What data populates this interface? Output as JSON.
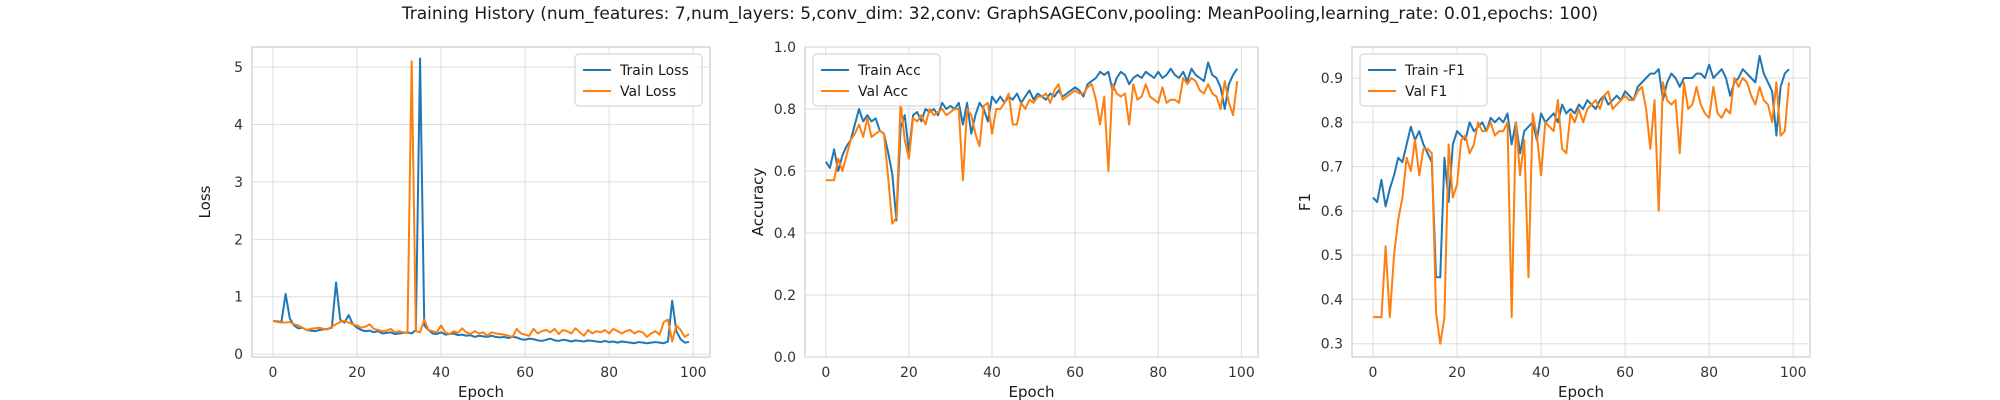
{
  "title": "Training History (num_features: 7,num_layers: 5,conv_dim: 32,conv: GraphSAGEConv,pooling: MeanPooling,learning_rate: 0.01,epochs: 100)",
  "colors": {
    "blue": "#1f77b4",
    "orange": "#ff7f0e"
  },
  "chart_data": [
    {
      "type": "line",
      "xlabel": "Epoch",
      "ylabel": "Loss",
      "xlim": [
        -5,
        104
      ],
      "ylim": [
        -0.05,
        5.35
      ],
      "xticks": [
        0,
        20,
        40,
        60,
        80,
        100
      ],
      "yticks": [
        0,
        1,
        2,
        3,
        4,
        5
      ],
      "grid": true,
      "legend": "top-right",
      "series": [
        {
          "name": "Train Loss",
          "color": "#1f77b4",
          "values": [
            0.58,
            0.57,
            0.56,
            1.05,
            0.62,
            0.5,
            0.45,
            0.46,
            0.42,
            0.41,
            0.4,
            0.42,
            0.43,
            0.44,
            0.46,
            1.25,
            0.6,
            0.55,
            0.68,
            0.52,
            0.46,
            0.42,
            0.4,
            0.41,
            0.38,
            0.4,
            0.36,
            0.37,
            0.38,
            0.35,
            0.36,
            0.37,
            0.38,
            0.36,
            0.42,
            5.15,
            0.5,
            0.42,
            0.36,
            0.35,
            0.38,
            0.34,
            0.35,
            0.36,
            0.33,
            0.34,
            0.32,
            0.33,
            0.3,
            0.32,
            0.31,
            0.3,
            0.32,
            0.3,
            0.29,
            0.3,
            0.28,
            0.3,
            0.29,
            0.26,
            0.25,
            0.27,
            0.26,
            0.24,
            0.23,
            0.25,
            0.27,
            0.24,
            0.23,
            0.25,
            0.24,
            0.22,
            0.24,
            0.23,
            0.22,
            0.24,
            0.23,
            0.22,
            0.21,
            0.23,
            0.21,
            0.22,
            0.2,
            0.22,
            0.21,
            0.2,
            0.19,
            0.21,
            0.2,
            0.19,
            0.2,
            0.21,
            0.2,
            0.19,
            0.22,
            0.93,
            0.4,
            0.26,
            0.2,
            0.21
          ]
        },
        {
          "name": "Val Loss",
          "color": "#ff7f0e",
          "values": [
            0.58,
            0.56,
            0.55,
            0.55,
            0.56,
            0.52,
            0.5,
            0.46,
            0.42,
            0.44,
            0.45,
            0.46,
            0.44,
            0.43,
            0.48,
            0.52,
            0.56,
            0.58,
            0.55,
            0.52,
            0.5,
            0.46,
            0.48,
            0.52,
            0.44,
            0.42,
            0.4,
            0.41,
            0.44,
            0.38,
            0.4,
            0.38,
            0.37,
            5.1,
            0.4,
            0.38,
            0.6,
            0.42,
            0.4,
            0.38,
            0.5,
            0.38,
            0.35,
            0.4,
            0.37,
            0.45,
            0.38,
            0.35,
            0.4,
            0.36,
            0.38,
            0.32,
            0.38,
            0.36,
            0.35,
            0.34,
            0.32,
            0.3,
            0.44,
            0.36,
            0.34,
            0.32,
            0.44,
            0.36,
            0.4,
            0.42,
            0.38,
            0.44,
            0.35,
            0.42,
            0.4,
            0.36,
            0.45,
            0.38,
            0.32,
            0.42,
            0.36,
            0.4,
            0.38,
            0.42,
            0.36,
            0.44,
            0.4,
            0.36,
            0.4,
            0.42,
            0.36,
            0.4,
            0.38,
            0.3,
            0.36,
            0.4,
            0.34,
            0.56,
            0.6,
            0.22,
            0.5,
            0.42,
            0.3,
            0.35
          ]
        }
      ]
    },
    {
      "type": "line",
      "xlabel": "Epoch",
      "ylabel": "Accuracy",
      "xlim": [
        -5,
        104
      ],
      "ylim": [
        0.0,
        1.0
      ],
      "xticks": [
        0,
        20,
        40,
        60,
        80,
        100
      ],
      "yticks": [
        0.0,
        0.2,
        0.4,
        0.6,
        0.8,
        1.0
      ],
      "grid": true,
      "legend": "top-left",
      "series": [
        {
          "name": "Train Acc",
          "color": "#1f77b4",
          "values": [
            0.63,
            0.61,
            0.67,
            0.6,
            0.65,
            0.68,
            0.7,
            0.75,
            0.8,
            0.76,
            0.78,
            0.76,
            0.77,
            0.73,
            0.72,
            0.66,
            0.59,
            0.44,
            0.74,
            0.78,
            0.66,
            0.78,
            0.79,
            0.76,
            0.8,
            0.79,
            0.8,
            0.78,
            0.82,
            0.8,
            0.81,
            0.8,
            0.82,
            0.75,
            0.82,
            0.72,
            0.78,
            0.82,
            0.8,
            0.76,
            0.84,
            0.82,
            0.84,
            0.82,
            0.84,
            0.83,
            0.85,
            0.82,
            0.84,
            0.86,
            0.83,
            0.85,
            0.84,
            0.83,
            0.85,
            0.84,
            0.86,
            0.84,
            0.85,
            0.86,
            0.87,
            0.86,
            0.84,
            0.88,
            0.89,
            0.9,
            0.92,
            0.91,
            0.92,
            0.86,
            0.9,
            0.92,
            0.91,
            0.88,
            0.9,
            0.91,
            0.9,
            0.92,
            0.91,
            0.9,
            0.92,
            0.9,
            0.91,
            0.93,
            0.91,
            0.9,
            0.92,
            0.89,
            0.93,
            0.91,
            0.9,
            0.89,
            0.95,
            0.91,
            0.9,
            0.87,
            0.8,
            0.88,
            0.91,
            0.93
          ]
        },
        {
          "name": "Val Acc",
          "color": "#ff7f0e",
          "values": [
            0.57,
            0.57,
            0.57,
            0.64,
            0.6,
            0.65,
            0.7,
            0.72,
            0.75,
            0.71,
            0.77,
            0.71,
            0.72,
            0.73,
            0.72,
            0.58,
            0.43,
            0.45,
            0.82,
            0.7,
            0.64,
            0.77,
            0.76,
            0.78,
            0.75,
            0.8,
            0.78,
            0.79,
            0.8,
            0.78,
            0.79,
            0.8,
            0.8,
            0.57,
            0.8,
            0.78,
            0.72,
            0.68,
            0.81,
            0.82,
            0.72,
            0.8,
            0.8,
            0.82,
            0.85,
            0.75,
            0.75,
            0.82,
            0.8,
            0.83,
            0.82,
            0.84,
            0.84,
            0.85,
            0.82,
            0.86,
            0.88,
            0.83,
            0.84,
            0.85,
            0.86,
            0.85,
            0.85,
            0.87,
            0.88,
            0.83,
            0.75,
            0.84,
            0.6,
            0.88,
            0.85,
            0.84,
            0.85,
            0.75,
            0.88,
            0.83,
            0.84,
            0.88,
            0.84,
            0.83,
            0.82,
            0.87,
            0.82,
            0.83,
            0.83,
            0.82,
            0.9,
            0.88,
            0.9,
            0.89,
            0.86,
            0.85,
            0.88,
            0.85,
            0.84,
            0.8,
            0.89,
            0.82,
            0.78,
            0.89
          ]
        }
      ]
    },
    {
      "type": "line",
      "xlabel": "Epoch",
      "ylabel": "F1",
      "xlim": [
        -5,
        104
      ],
      "ylim": [
        0.27,
        0.97
      ],
      "xticks": [
        0,
        20,
        40,
        60,
        80,
        100
      ],
      "yticks": [
        0.3,
        0.4,
        0.5,
        0.6,
        0.7,
        0.8,
        0.9
      ],
      "grid": true,
      "legend": "top-left",
      "series": [
        {
          "name": "Train -F1",
          "color": "#1f77b4",
          "values": [
            0.63,
            0.62,
            0.67,
            0.61,
            0.65,
            0.68,
            0.72,
            0.71,
            0.75,
            0.79,
            0.76,
            0.78,
            0.75,
            0.73,
            0.71,
            0.45,
            0.45,
            0.72,
            0.62,
            0.75,
            0.78,
            0.77,
            0.76,
            0.8,
            0.78,
            0.79,
            0.8,
            0.78,
            0.81,
            0.8,
            0.81,
            0.8,
            0.82,
            0.75,
            0.8,
            0.73,
            0.78,
            0.79,
            0.8,
            0.76,
            0.82,
            0.8,
            0.81,
            0.82,
            0.8,
            0.84,
            0.82,
            0.83,
            0.82,
            0.84,
            0.83,
            0.85,
            0.84,
            0.83,
            0.85,
            0.86,
            0.84,
            0.85,
            0.86,
            0.85,
            0.87,
            0.86,
            0.85,
            0.88,
            0.89,
            0.9,
            0.91,
            0.91,
            0.92,
            0.85,
            0.89,
            0.91,
            0.9,
            0.88,
            0.9,
            0.9,
            0.9,
            0.91,
            0.91,
            0.9,
            0.93,
            0.9,
            0.91,
            0.92,
            0.9,
            0.86,
            0.89,
            0.9,
            0.92,
            0.91,
            0.9,
            0.89,
            0.95,
            0.91,
            0.89,
            0.87,
            0.77,
            0.88,
            0.91,
            0.92
          ]
        },
        {
          "name": "Val F1",
          "color": "#ff7f0e",
          "values": [
            0.36,
            0.36,
            0.36,
            0.52,
            0.36,
            0.5,
            0.58,
            0.63,
            0.72,
            0.69,
            0.76,
            0.68,
            0.74,
            0.74,
            0.73,
            0.37,
            0.3,
            0.36,
            0.75,
            0.63,
            0.66,
            0.76,
            0.77,
            0.73,
            0.75,
            0.8,
            0.78,
            0.78,
            0.8,
            0.77,
            0.78,
            0.78,
            0.8,
            0.36,
            0.8,
            0.68,
            0.76,
            0.45,
            0.82,
            0.77,
            0.68,
            0.8,
            0.79,
            0.78,
            0.85,
            0.74,
            0.73,
            0.82,
            0.8,
            0.83,
            0.8,
            0.83,
            0.84,
            0.85,
            0.83,
            0.86,
            0.87,
            0.83,
            0.84,
            0.85,
            0.86,
            0.85,
            0.85,
            0.87,
            0.88,
            0.83,
            0.74,
            0.85,
            0.6,
            0.89,
            0.85,
            0.84,
            0.85,
            0.73,
            0.89,
            0.83,
            0.84,
            0.88,
            0.84,
            0.82,
            0.81,
            0.88,
            0.82,
            0.81,
            0.83,
            0.82,
            0.9,
            0.88,
            0.9,
            0.89,
            0.86,
            0.84,
            0.88,
            0.85,
            0.84,
            0.8,
            0.89,
            0.77,
            0.78,
            0.89
          ]
        }
      ]
    }
  ]
}
